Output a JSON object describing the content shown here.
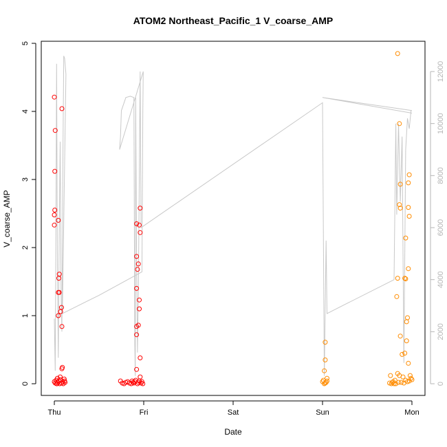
{
  "chart_data": {
    "type": "scatter",
    "title": "ATOM2 Northeast_Pacific_1 V_coarse_AMP",
    "xlabel": "Date",
    "ylabel": "V_coarse_AMP",
    "x_ticks": [
      {
        "label": "Thu",
        "x": 0
      },
      {
        "label": "Fri",
        "x": 1
      },
      {
        "label": "Sat",
        "x": 2
      },
      {
        "label": "Sun",
        "x": 3
      },
      {
        "label": "Mon",
        "x": 4
      }
    ],
    "ylim": [
      0,
      5
    ],
    "y_ticks": [
      0,
      1,
      2,
      3,
      4,
      5
    ],
    "y2lim": [
      0,
      13000
    ],
    "y2_ticks": [
      0,
      2000,
      4000,
      6000,
      8000,
      10000,
      12000
    ],
    "y2_axis_color": "#b5b5b5",
    "grid": false,
    "series": [
      {
        "color": "#ff0000",
        "marker": "open-circle",
        "points": [
          [
            0.0,
            4.21
          ],
          [
            0.01,
            3.72
          ],
          [
            0.005,
            3.12
          ],
          [
            0.005,
            2.55
          ],
          [
            0.0,
            2.48
          ],
          [
            0.0,
            2.33
          ],
          [
            0.045,
            2.4
          ],
          [
            0.085,
            4.04
          ],
          [
            0.055,
            1.61
          ],
          [
            0.05,
            1.55
          ],
          [
            0.045,
            1.34
          ],
          [
            0.055,
            1.34
          ],
          [
            0.08,
            1.12
          ],
          [
            0.07,
            1.06
          ],
          [
            0.045,
            1.0
          ],
          [
            0.085,
            0.84
          ],
          [
            0.09,
            0.24
          ],
          [
            0.085,
            0.22
          ],
          [
            0.0,
            0.03
          ],
          [
            0.01,
            0.01
          ],
          [
            0.02,
            0.05
          ],
          [
            0.03,
            0.0
          ],
          [
            0.035,
            0.08
          ],
          [
            0.04,
            0.02
          ],
          [
            0.05,
            0.04
          ],
          [
            0.06,
            0.0
          ],
          [
            0.07,
            0.06
          ],
          [
            0.08,
            0.01
          ],
          [
            0.095,
            0.03
          ],
          [
            0.11,
            0.07
          ],
          [
            0.12,
            0.02
          ],
          [
            0.065,
            0.1
          ],
          [
            0.025,
            0.0
          ],
          [
            0.1,
            0.0
          ],
          [
            0.115,
            0.04
          ],
          [
            0.92,
            2.35
          ],
          [
            0.96,
            2.58
          ],
          [
            0.95,
            2.33
          ],
          [
            0.96,
            2.22
          ],
          [
            0.92,
            1.87
          ],
          [
            0.94,
            1.76
          ],
          [
            0.93,
            1.68
          ],
          [
            0.92,
            1.4
          ],
          [
            0.95,
            1.23
          ],
          [
            0.95,
            1.1
          ],
          [
            0.94,
            0.86
          ],
          [
            0.92,
            0.84
          ],
          [
            0.92,
            0.72
          ],
          [
            0.96,
            0.38
          ],
          [
            0.92,
            0.21
          ],
          [
            0.96,
            0.1
          ],
          [
            0.74,
            0.04
          ],
          [
            0.76,
            0.01
          ],
          [
            0.78,
            0.0
          ],
          [
            0.8,
            0.02
          ],
          [
            0.82,
            0.03
          ],
          [
            0.84,
            0.01
          ],
          [
            0.86,
            0.0
          ],
          [
            0.88,
            0.02
          ],
          [
            0.9,
            0.03
          ],
          [
            0.91,
            0.05
          ],
          [
            0.93,
            0.0
          ],
          [
            0.94,
            0.02
          ],
          [
            0.95,
            0.04
          ],
          [
            0.97,
            0.01
          ],
          [
            0.98,
            0.03
          ],
          [
            0.99,
            0.0
          ],
          [
            0.89,
            0.01
          ],
          [
            0.87,
            0.04
          ]
        ]
      },
      {
        "color": "#ff8c00",
        "marker": "open-circle",
        "points": [
          [
            3.03,
            0.61
          ],
          [
            3.03,
            0.35
          ],
          [
            3.02,
            0.19
          ],
          [
            3.05,
            0.08
          ],
          [
            3.01,
            0.05
          ],
          [
            3.02,
            0.0
          ],
          [
            3.04,
            0.02
          ],
          [
            3.0,
            0.03
          ],
          [
            3.03,
            0.01
          ],
          [
            3.05,
            0.04
          ],
          [
            3.84,
            4.85
          ],
          [
            3.86,
            3.82
          ],
          [
            3.97,
            3.07
          ],
          [
            3.96,
            2.95
          ],
          [
            3.87,
            2.93
          ],
          [
            3.86,
            2.63
          ],
          [
            3.87,
            2.58
          ],
          [
            3.96,
            2.59
          ],
          [
            3.97,
            2.46
          ],
          [
            3.93,
            2.14
          ],
          [
            3.96,
            1.69
          ],
          [
            3.84,
            1.55
          ],
          [
            3.92,
            1.55
          ],
          [
            3.93,
            1.54
          ],
          [
            3.83,
            1.28
          ],
          [
            3.95,
            0.97
          ],
          [
            3.94,
            0.91
          ],
          [
            3.87,
            0.7
          ],
          [
            3.94,
            0.63
          ],
          [
            3.92,
            0.45
          ],
          [
            3.89,
            0.43
          ],
          [
            3.96,
            0.3
          ],
          [
            3.84,
            0.15
          ],
          [
            3.86,
            0.12
          ],
          [
            3.9,
            0.1
          ],
          [
            3.98,
            0.12
          ],
          [
            3.99,
            0.08
          ],
          [
            3.93,
            0.05
          ],
          [
            3.95,
            0.03
          ],
          [
            3.88,
            0.02
          ],
          [
            3.76,
            0.12
          ],
          [
            3.75,
            0.01
          ],
          [
            3.77,
            0.0
          ],
          [
            3.79,
            0.03
          ],
          [
            3.81,
            0.05
          ],
          [
            3.82,
            0.0
          ],
          [
            3.85,
            0.02
          ],
          [
            3.91,
            0.01
          ],
          [
            3.97,
            0.04
          ],
          [
            4.0,
            0.06
          ],
          [
            3.8,
            0.0
          ],
          [
            3.78,
            0.02
          ]
        ]
      },
      {
        "color": "#c8c8c8",
        "marker": "line",
        "axis": "right",
        "points": [
          [
            0.0,
            2500
          ],
          [
            0.01,
            500
          ],
          [
            0.02,
            7500
          ],
          [
            0.025,
            12300
          ],
          [
            0.035,
            4500
          ],
          [
            0.045,
            1000
          ],
          [
            0.055,
            6000
          ],
          [
            0.065,
            9300
          ],
          [
            0.075,
            3500
          ],
          [
            0.085,
            2000
          ],
          [
            0.095,
            8000
          ],
          [
            0.105,
            12600
          ],
          [
            0.115,
            12500
          ],
          [
            0.13,
            11900
          ],
          [
            0.09,
            2700
          ],
          [
            0.5,
            3400
          ],
          [
            0.98,
            4300
          ],
          [
            0.99,
            10500
          ],
          [
            0.995,
            12000
          ],
          [
            0.73,
            9000
          ],
          [
            0.74,
            9500
          ],
          [
            0.75,
            10500
          ],
          [
            0.8,
            11000
          ],
          [
            0.85,
            11050
          ],
          [
            0.89,
            11000
          ],
          [
            0.9,
            1500
          ],
          [
            0.905,
            300
          ],
          [
            0.91,
            11000
          ],
          [
            0.92,
            5000
          ],
          [
            0.93,
            1200
          ],
          [
            0.94,
            3500
          ],
          [
            0.96,
            12000
          ],
          [
            0.97,
            6000
          ],
          [
            3.0,
            10800
          ],
          [
            3.02,
            300
          ],
          [
            3.04,
            5500
          ],
          [
            3.05,
            2700
          ],
          [
            3.8,
            4000
          ],
          [
            3.82,
            10000
          ],
          [
            3.83,
            6500
          ],
          [
            3.85,
            10000
          ],
          [
            3.87,
            7000
          ],
          [
            3.89,
            9500
          ],
          [
            3.91,
            800
          ],
          [
            3.93,
            9000
          ],
          [
            3.95,
            10200
          ],
          [
            3.97,
            9800
          ],
          [
            3.99,
            10500
          ],
          [
            4.0,
            10500
          ],
          [
            3.0,
            11000
          ],
          [
            4.0,
            10400
          ]
        ]
      }
    ]
  }
}
